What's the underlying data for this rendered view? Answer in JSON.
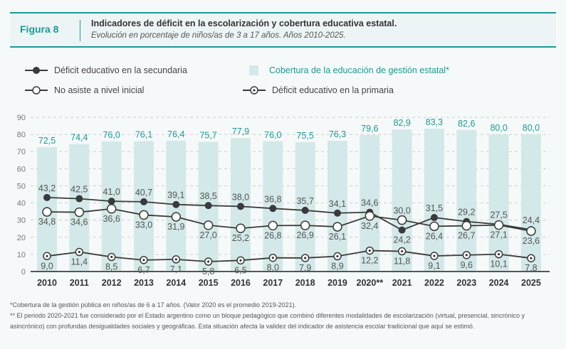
{
  "header": {
    "figure_label": "Figura 8",
    "title": "Indicadores de déficit en la escolarización y cobertura educativa estatal.",
    "subtitle": "Evolución en porcentaje de niños/as de 3 a 17 años. Años 2010-2025."
  },
  "legend": {
    "secundaria": "Déficit educativo en la secundaria",
    "inicial": "No asiste a nivel inicial",
    "cobertura": "Cobertura de la educación de gestión estatal*",
    "primaria": "Déficit educativo en la primaria"
  },
  "colors": {
    "accent": "#1a9a93",
    "bar": "#d3e8e8",
    "line": "#3a3a3a",
    "grid": "#cccccc"
  },
  "footnotes": [
    "*Cobertura de la gestión pública en niños/as de 6 a 17 años. (Valor 2020 es el promedio 2019-2021).",
    "** El periodo 2020-2021 fue considerado por el Estado argentino como un bloque pedagógico que combinó diferentes modalidades de escolarización (virtual, presencial, sincrónico y asincrónico) con profundas desigualdades sociales y geográficas. Esta situación afecta la validez del indicador de asistencia escolar tradicional que aquí se estimó."
  ],
  "chart_data": {
    "type": "bar",
    "title": "Indicadores de déficit en la escolarización y cobertura educativa estatal.",
    "xlabel": "",
    "ylabel": "",
    "ylim": [
      0,
      90
    ],
    "yticks": [
      0,
      10,
      20,
      30,
      40,
      50,
      60,
      70,
      80,
      90
    ],
    "grid": true,
    "legend_position": "top",
    "categories": [
      "2010",
      "2011",
      "2012",
      "2013",
      "2014",
      "2015",
      "2016",
      "2017",
      "2018",
      "2019",
      "2020**",
      "2021",
      "2022",
      "2023",
      "2024",
      "2025"
    ],
    "series": [
      {
        "name": "Cobertura de la educación de gestión estatal*",
        "kind": "bar",
        "values": [
          72.5,
          74.4,
          76.0,
          76.1,
          76.4,
          75.7,
          77.9,
          76.0,
          75.5,
          76.3,
          79.6,
          82.9,
          83.3,
          82.6,
          80.0,
          80.0
        ],
        "labels": [
          "72,5",
          "74,4",
          "76,0",
          "76,1",
          "76,4",
          "75,7",
          "77,9",
          "76,0",
          "75,5",
          "76,3",
          "79,6",
          "82,9",
          "83,3",
          "82,6",
          "80,0",
          "80,0"
        ]
      },
      {
        "name": "Déficit educativo en la secundaria",
        "kind": "line",
        "marker": "filled",
        "values": [
          43.2,
          42.5,
          41.0,
          40.7,
          39.1,
          38.5,
          38.0,
          36.8,
          35.7,
          34.1,
          34.6,
          24.2,
          31.5,
          29.2,
          27.5,
          24.4
        ],
        "labels": [
          "43,2",
          "42,5",
          "41,0",
          "40,7",
          "39,1",
          "38,5",
          "38,0",
          "36,8",
          "35,7",
          "34,1",
          "34,6",
          "24,2",
          "31,5",
          "29,2",
          "27,5",
          "24,4"
        ],
        "label_pos": [
          "above",
          "above",
          "above",
          "above",
          "above",
          "above",
          "above",
          "above",
          "above",
          "above",
          "above",
          "below",
          "above",
          "above",
          "above",
          "above"
        ]
      },
      {
        "name": "No asiste a nivel inicial",
        "kind": "line",
        "marker": "open",
        "values": [
          34.8,
          34.6,
          36.6,
          33.0,
          31.9,
          27.0,
          25.2,
          26.8,
          26.9,
          26.1,
          32.4,
          30.0,
          26.4,
          26.7,
          27.1,
          23.6
        ],
        "labels": [
          "34,8",
          "34,6",
          "36,6",
          "33,0",
          "31,9",
          "27,0",
          "25,2",
          "26,8",
          "26,9",
          "26,1",
          "32,4",
          "30,0",
          "26,4",
          "26,7",
          "27,1",
          "23,6"
        ],
        "label_pos": [
          "below",
          "below",
          "below",
          "below",
          "below",
          "below",
          "below",
          "below",
          "below",
          "below",
          "below",
          "above",
          "below",
          "below",
          "below",
          "below"
        ]
      },
      {
        "name": "Déficit educativo en la primaria",
        "kind": "line",
        "marker": "dot",
        "values": [
          9.0,
          11.4,
          8.5,
          6.7,
          7.1,
          5.8,
          6.5,
          8.0,
          7.9,
          8.9,
          12.2,
          11.8,
          9.1,
          9.6,
          10.1,
          7.8
        ],
        "labels": [
          "9,0",
          "11,4",
          "8,5",
          "6,7",
          "7,1",
          "5,8",
          "6,5",
          "8,0",
          "7,9",
          "8,9",
          "12,2",
          "11,8",
          "9,1",
          "9,6",
          "10,1",
          "7,8"
        ],
        "label_pos": [
          "below",
          "below",
          "below",
          "below",
          "below",
          "below",
          "below",
          "below",
          "below",
          "below",
          "below",
          "below",
          "below",
          "below",
          "below",
          "below"
        ]
      }
    ]
  }
}
